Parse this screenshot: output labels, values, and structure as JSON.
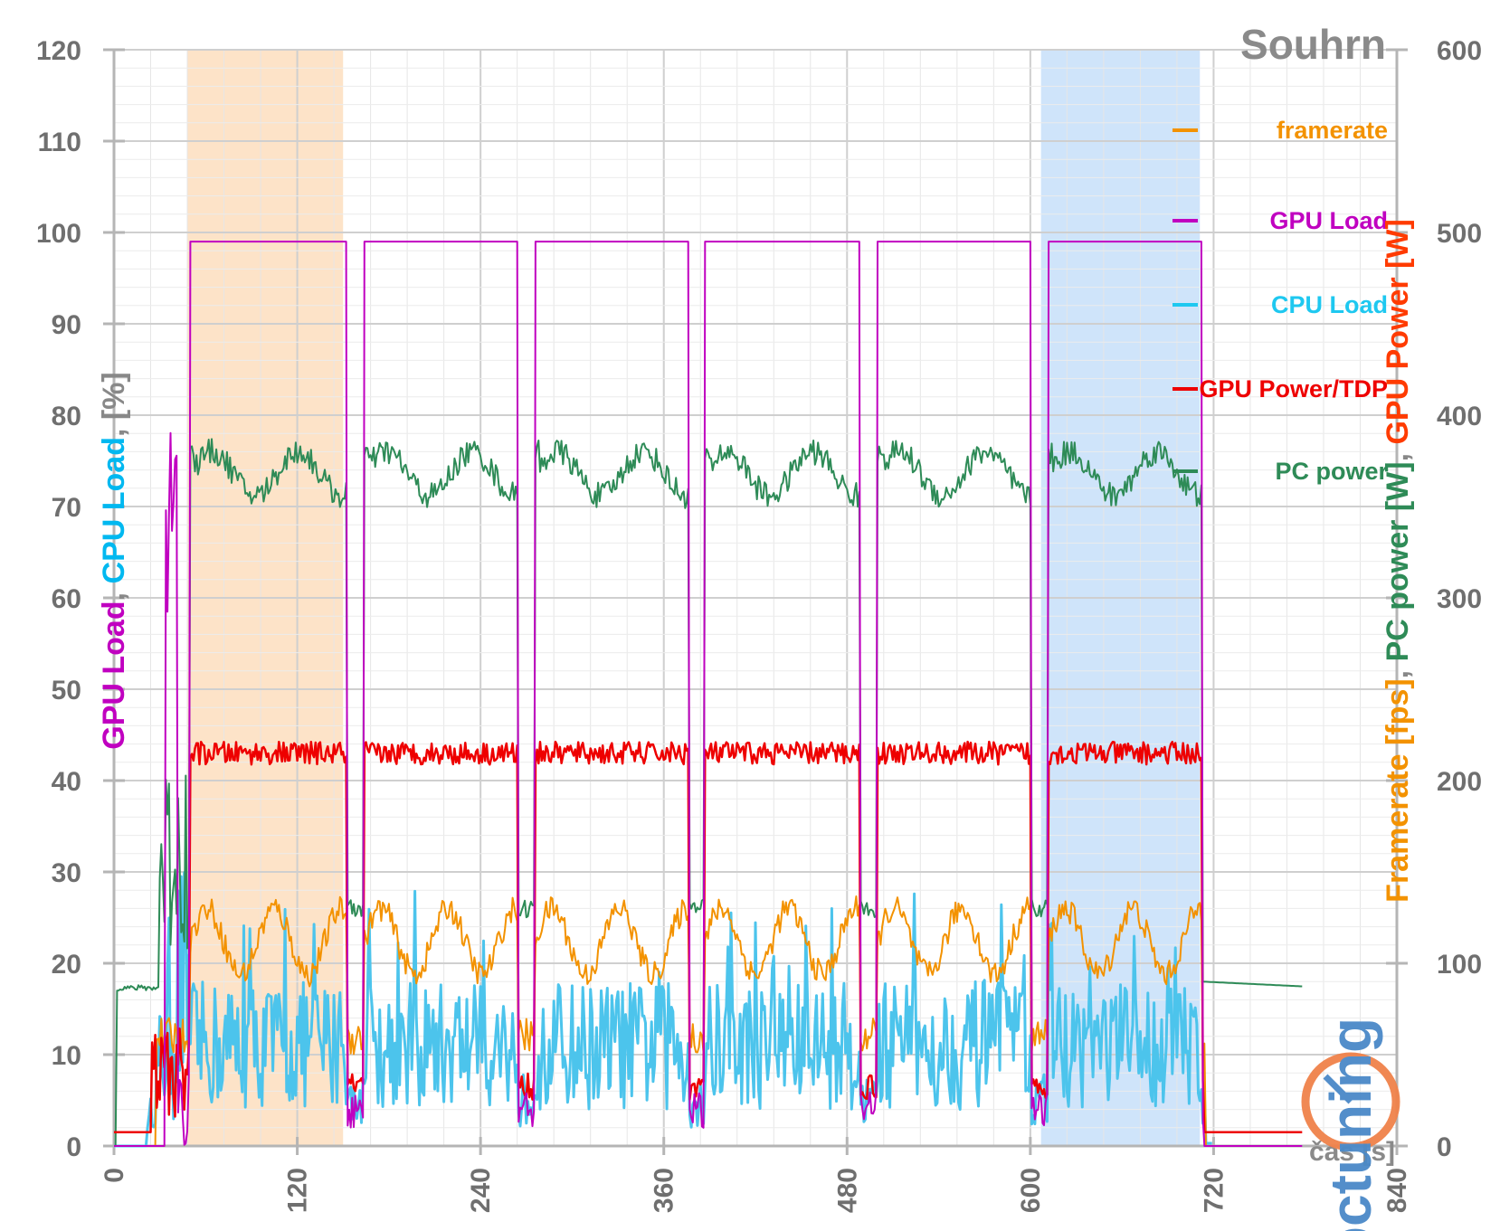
{
  "chart_data": {
    "type": "line",
    "title": "Souhrn",
    "xlabel": "čas [s]",
    "ylabel_left": {
      "parts": [
        {
          "text": "GPU Load",
          "color": "#c000c0"
        },
        {
          "text": ", ",
          "color": "#888888"
        },
        {
          "text": "CPU Load",
          "color": "#00b8f0"
        },
        {
          "text": ", [%]",
          "color": "#888888"
        }
      ]
    },
    "ylabel_right": {
      "parts": [
        {
          "text": "Framerate [fps]",
          "color": "#f39200"
        },
        {
          "text": ", ",
          "color": "#888888"
        },
        {
          "text": "PC power [W]",
          "color": "#2e8b57"
        },
        {
          "text": ", ",
          "color": "#888888"
        },
        {
          "text": "GPU Power [W]",
          "color": "#ff3b00"
        }
      ]
    },
    "xlim": [
      0,
      840
    ],
    "ylim_left": [
      0,
      120
    ],
    "ylim_right": [
      0,
      600
    ],
    "x_ticks": [
      "0",
      "120",
      "240",
      "360",
      "480",
      "600",
      "720",
      "840"
    ],
    "y_left_ticks": [
      "0",
      "10",
      "20",
      "30",
      "40",
      "50",
      "60",
      "70",
      "80",
      "90",
      "100",
      "110",
      "120"
    ],
    "y_right_ticks": [
      "0",
      "100",
      "200",
      "300",
      "400",
      "500",
      "600"
    ],
    "grid": true,
    "shaded_regions": [
      {
        "x0": 48,
        "x1": 150,
        "color": "#fde3c8"
      },
      {
        "x0": 607,
        "x1": 711,
        "color": "#cfe4fa"
      }
    ],
    "legend_position": "right",
    "legend": [
      {
        "name": "framerate",
        "color": "#f39200"
      },
      {
        "name": "GPU Load",
        "color": "#c000c0"
      },
      {
        "name": "CPU Load",
        "color": "#1ec8f0"
      },
      {
        "name": "GPU Power/TDP",
        "color": "#ee0000"
      },
      {
        "name": "PC power",
        "color": "#2e8b57"
      }
    ],
    "runs": [
      {
        "start": 50,
        "end": 152
      },
      {
        "start": 164,
        "end": 264
      },
      {
        "start": 276,
        "end": 376
      },
      {
        "start": 387,
        "end": 488
      },
      {
        "start": 500,
        "end": 600
      },
      {
        "start": 612,
        "end": 712
      }
    ],
    "series_levels": {
      "gpu_load_percent": {
        "idle": 0,
        "load": 99
      },
      "gpu_power_percent": {
        "idle": 1.5,
        "load": 43
      },
      "pc_power_watts": {
        "idle": 85,
        "load_range": [
          355,
          390
        ],
        "after": 90
      },
      "framerate_fps": {
        "load_range": [
          90,
          135
        ]
      },
      "cpu_load_percent": {
        "load_range": [
          2,
          28
        ]
      }
    },
    "logo_text": "pctuning"
  }
}
